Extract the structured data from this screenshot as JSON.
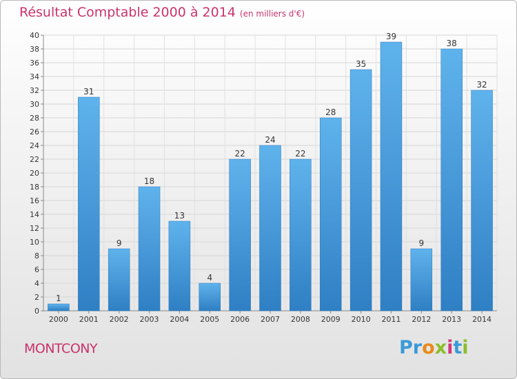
{
  "title": "Résultat Comptable 2000 à 2014",
  "subtitle": "(en milliers d'€)",
  "commune": "MONTCONY",
  "logo": {
    "p1": "Pr",
    "p2": "o",
    "p3": "x",
    "p4": "i",
    "p5": "t",
    "p6": "i"
  },
  "colors": {
    "bar": "#3d95d6",
    "bar_light": "#5fb3ec",
    "title": "#c8336b",
    "grid": "#d4d4d4"
  },
  "chart_data": {
    "type": "bar",
    "title": "Résultat Comptable 2000 à 2014",
    "subtitle": "(en milliers d'€)",
    "xlabel": "",
    "ylabel": "",
    "categories": [
      "2000",
      "2001",
      "2002",
      "2003",
      "2004",
      "2005",
      "2006",
      "2007",
      "2008",
      "2009",
      "2010",
      "2011",
      "2012",
      "2013",
      "2014"
    ],
    "values": [
      1,
      31,
      9,
      18,
      13,
      4,
      22,
      24,
      22,
      28,
      35,
      39,
      9,
      38,
      32
    ],
    "ylim": [
      0,
      40
    ],
    "yticks": [
      0,
      2,
      4,
      6,
      8,
      10,
      12,
      14,
      16,
      18,
      20,
      22,
      24,
      26,
      28,
      30,
      32,
      34,
      36,
      38,
      40
    ],
    "grid": true,
    "data_labels": true
  }
}
